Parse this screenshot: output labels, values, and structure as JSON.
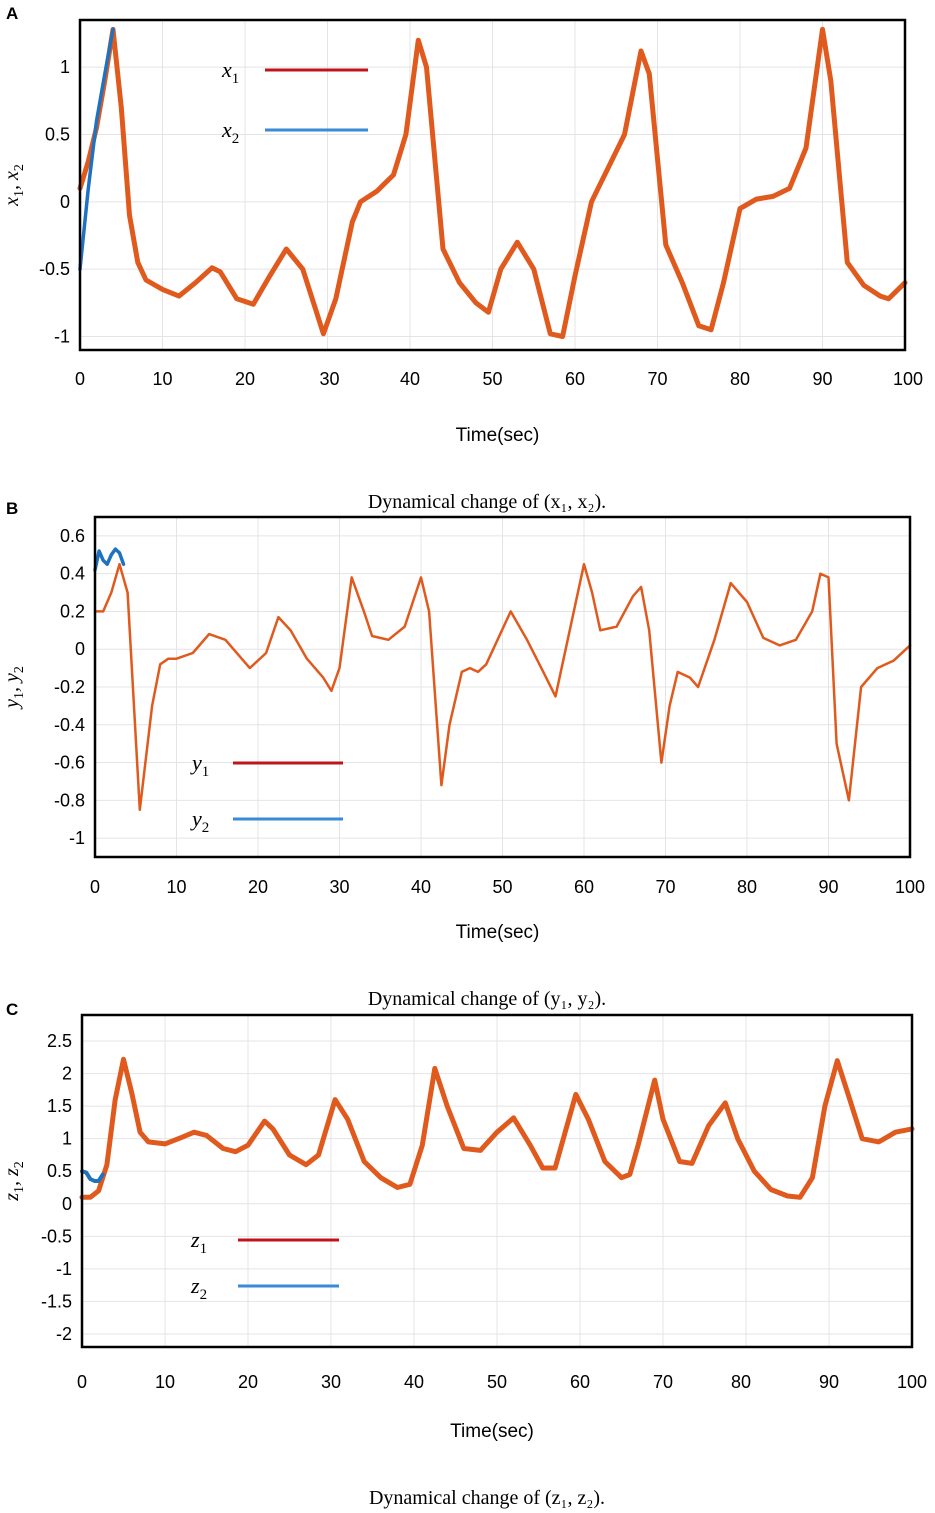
{
  "chart_data": [
    {
      "type": "line",
      "panel": "A",
      "xlabel": "Time(sec)",
      "ylabel_parts": [
        "x",
        "1",
        ", ",
        "x",
        "2"
      ],
      "xlim": [
        0,
        100
      ],
      "ylim": [
        -1.1,
        1.35
      ],
      "xticks": [
        "0",
        "10",
        "20",
        "30",
        "40",
        "50",
        "60",
        "70",
        "80",
        "90",
        "100"
      ],
      "yticks": [
        "1",
        "0.5",
        "0",
        "-0.5",
        "-1"
      ],
      "ytick_values": [
        1,
        0.5,
        0,
        -0.5,
        -1
      ],
      "legend_position": "top-left",
      "caption": "Dynamical change of (x₁, x₂).",
      "series": [
        {
          "name": "x1",
          "symbol": "x",
          "sub": "1",
          "color": "#e05a1e",
          "legend_color": "#c0141c",
          "width": 5,
          "x": [
            0,
            1,
            2,
            3,
            4,
            5,
            6,
            7,
            8,
            10,
            12,
            14,
            16,
            17,
            19,
            21,
            23,
            25,
            27,
            29.5,
            31,
            33,
            34,
            36,
            38,
            39.5,
            41,
            42,
            44,
            46,
            48,
            49.5,
            51,
            53,
            55,
            57,
            58.5,
            60,
            62,
            64,
            66,
            68,
            69,
            71,
            73,
            75,
            76.5,
            78,
            80,
            82,
            84,
            86,
            88,
            90,
            91,
            93,
            95,
            97,
            98,
            100
          ],
          "y": [
            0.1,
            0.3,
            0.55,
            0.9,
            1.28,
            0.7,
            -0.1,
            -0.45,
            -0.58,
            -0.65,
            -0.7,
            -0.6,
            -0.49,
            -0.52,
            -0.72,
            -0.76,
            -0.55,
            -0.35,
            -0.5,
            -0.98,
            -0.72,
            -0.15,
            0,
            0.08,
            0.2,
            0.5,
            1.2,
            1.0,
            -0.35,
            -0.6,
            -0.75,
            -0.82,
            -0.5,
            -0.3,
            -0.5,
            -0.98,
            -1.0,
            -0.55,
            0.0,
            0.25,
            0.5,
            1.12,
            0.95,
            -0.32,
            -0.6,
            -0.92,
            -0.95,
            -0.6,
            -0.05,
            0.02,
            0.04,
            0.1,
            0.4,
            1.28,
            0.9,
            -0.45,
            -0.62,
            -0.7,
            -0.72,
            -0.6
          ]
        },
        {
          "name": "x2",
          "symbol": "x",
          "sub": "2",
          "color": "#1f72c0",
          "legend_color": "#3a8ad6",
          "width": 3.5,
          "x": [
            0,
            1,
            2,
            3,
            4
          ],
          "y": [
            -0.5,
            0.1,
            0.6,
            0.95,
            1.28
          ]
        }
      ]
    },
    {
      "type": "line",
      "panel": "B",
      "xlabel": "Time(sec)",
      "ylabel_parts": [
        "y",
        "1",
        ", ",
        "y",
        "2"
      ],
      "xlim": [
        0,
        100
      ],
      "ylim": [
        -1.1,
        0.7
      ],
      "xticks": [
        "0",
        "10",
        "20",
        "30",
        "40",
        "50",
        "60",
        "70",
        "80",
        "90",
        "100"
      ],
      "yticks": [
        "0.6",
        "0.4",
        "0.2",
        "0",
        "-0.2",
        "-0.4",
        "-0.6",
        "-0.8",
        "-1"
      ],
      "ytick_values": [
        0.6,
        0.4,
        0.2,
        0,
        -0.2,
        -0.4,
        -0.6,
        -0.8,
        -1
      ],
      "legend_position": "bottom-left",
      "caption": "Dynamical change of (y₁, y₂).",
      "series": [
        {
          "name": "y1",
          "symbol": "y",
          "sub": "1",
          "color": "#e05a1e",
          "legend_color": "#c0141c",
          "width": 2.5,
          "x": [
            0,
            1,
            2,
            3,
            4,
            5.5,
            7,
            8,
            9,
            10,
            12,
            14,
            16,
            19,
            21,
            22.5,
            24,
            26,
            28,
            29,
            30,
            31.5,
            33,
            34,
            36,
            38,
            40,
            41,
            42.5,
            43.5,
            45,
            46,
            47,
            48,
            51,
            53,
            55,
            56.5,
            58,
            60,
            61,
            62,
            64,
            66,
            67,
            68,
            69.5,
            70.5,
            71.5,
            73,
            74,
            76,
            78,
            80,
            82,
            84,
            86,
            88,
            89,
            90,
            91,
            92.5,
            94,
            96,
            98,
            100
          ],
          "y": [
            0.2,
            0.2,
            0.3,
            0.45,
            0.3,
            -0.85,
            -0.3,
            -0.08,
            -0.05,
            -0.05,
            -0.02,
            0.08,
            0.05,
            -0.1,
            -0.02,
            0.17,
            0.1,
            -0.05,
            -0.15,
            -0.22,
            -0.1,
            0.38,
            0.2,
            0.07,
            0.05,
            0.12,
            0.38,
            0.2,
            -0.72,
            -0.4,
            -0.12,
            -0.1,
            -0.12,
            -0.08,
            0.2,
            0.05,
            -0.12,
            -0.25,
            0.05,
            0.45,
            0.3,
            0.1,
            0.12,
            0.28,
            0.33,
            0.1,
            -0.6,
            -0.3,
            -0.12,
            -0.15,
            -0.2,
            0.05,
            0.35,
            0.25,
            0.06,
            0.02,
            0.05,
            0.2,
            0.4,
            0.38,
            -0.5,
            -0.8,
            -0.2,
            -0.1,
            -0.06,
            0.02
          ]
        },
        {
          "name": "y2",
          "symbol": "y",
          "sub": "2",
          "color": "#1f72c0",
          "legend_color": "#3a8ad6",
          "width": 3.5,
          "x": [
            0,
            0.5,
            1,
            1.5,
            2,
            2.5,
            3,
            3.5
          ],
          "y": [
            0.42,
            0.52,
            0.47,
            0.45,
            0.5,
            0.53,
            0.51,
            0.45
          ]
        }
      ]
    },
    {
      "type": "line",
      "panel": "C",
      "xlabel": "Time(sec)",
      "ylabel_parts": [
        "z",
        "1",
        ", ",
        "z",
        "2"
      ],
      "xlim": [
        0,
        100
      ],
      "ylim": [
        -2.2,
        2.9
      ],
      "xticks": [
        "0",
        "10",
        "20",
        "30",
        "40",
        "50",
        "60",
        "70",
        "80",
        "90",
        "100"
      ],
      "yticks": [
        "2.5",
        "2",
        "1.5",
        "1",
        "0.5",
        "0",
        "-0.5",
        "-1",
        "-1.5",
        "-2"
      ],
      "ytick_values": [
        2.5,
        2,
        1.5,
        1,
        0.5,
        0,
        -0.5,
        -1,
        -1.5,
        -2
      ],
      "legend_position": "middle-left",
      "caption": "Dynamical change of (z₁, z₂).",
      "series": [
        {
          "name": "z1",
          "symbol": "z",
          "sub": "1",
          "color": "#e05a1e",
          "legend_color": "#c0141c",
          "width": 5,
          "x": [
            0,
            1,
            2,
            3,
            4,
            5,
            6,
            7,
            8,
            10,
            12,
            13.5,
            15,
            17,
            18.5,
            20,
            22,
            23,
            25,
            27,
            28.5,
            30.5,
            32,
            34,
            36,
            38,
            39.5,
            41,
            42.5,
            44,
            46,
            48,
            50,
            52,
            54,
            55.5,
            57,
            59.5,
            61,
            63,
            65,
            66,
            67,
            69,
            70,
            72,
            73.5,
            75.5,
            77.5,
            79,
            81,
            83,
            85,
            86.5,
            88,
            89.5,
            91,
            92.5,
            94,
            96,
            98,
            100
          ],
          "y": [
            0.1,
            0.1,
            0.2,
            0.6,
            1.6,
            2.22,
            1.7,
            1.1,
            0.95,
            0.92,
            1.02,
            1.1,
            1.05,
            0.85,
            0.8,
            0.9,
            1.27,
            1.15,
            0.75,
            0.6,
            0.75,
            1.6,
            1.3,
            0.65,
            0.4,
            0.25,
            0.3,
            0.9,
            2.08,
            1.5,
            0.85,
            0.82,
            1.1,
            1.32,
            0.9,
            0.55,
            0.55,
            1.68,
            1.3,
            0.65,
            0.4,
            0.45,
            0.9,
            1.9,
            1.3,
            0.65,
            0.62,
            1.2,
            1.55,
            1.0,
            0.5,
            0.22,
            0.12,
            0.1,
            0.4,
            1.5,
            2.2,
            1.6,
            1.0,
            0.95,
            1.1,
            1.15
          ]
        },
        {
          "name": "z2",
          "symbol": "z",
          "sub": "2",
          "color": "#1f72c0",
          "legend_color": "#3a8ad6",
          "width": 4,
          "x": [
            0,
            0.5,
            1,
            1.5,
            2,
            2.5
          ],
          "y": [
            0.5,
            0.48,
            0.38,
            0.35,
            0.35,
            0.45
          ]
        }
      ]
    }
  ]
}
